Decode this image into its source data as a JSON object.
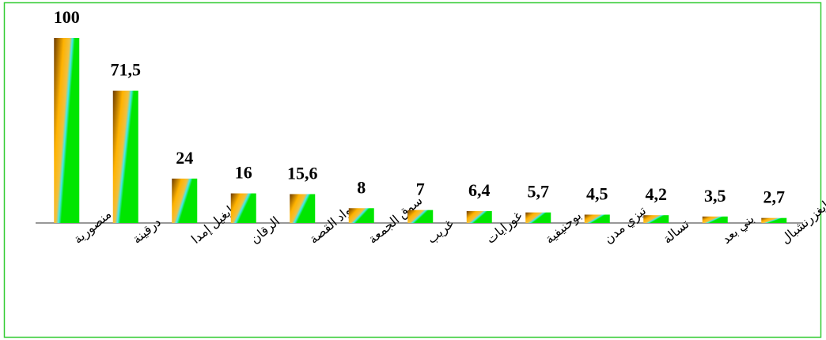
{
  "chart_data": {
    "type": "bar",
    "categories": [
      "منصورية",
      "درقينة",
      "إيغيل إمدا",
      "الرقان",
      "واد القصة",
      "سوق الجمعة",
      "غريب",
      "غورايات",
      "بوحنيفية",
      "تيزي مدن",
      "تسالة",
      "بني بعد",
      "إيغزرنشبال"
    ],
    "values": [
      100,
      71.5,
      24,
      16,
      15.6,
      8,
      7,
      6.4,
      5.7,
      4.5,
      4.2,
      3.5,
      2.7
    ],
    "value_labels": [
      "100",
      "71,5",
      "24",
      "16",
      "15,6",
      "8",
      "7",
      "6,4",
      "5,7",
      "4,5",
      "4,2",
      "3,5",
      "2,7"
    ],
    "color": "#00e600"
  }
}
